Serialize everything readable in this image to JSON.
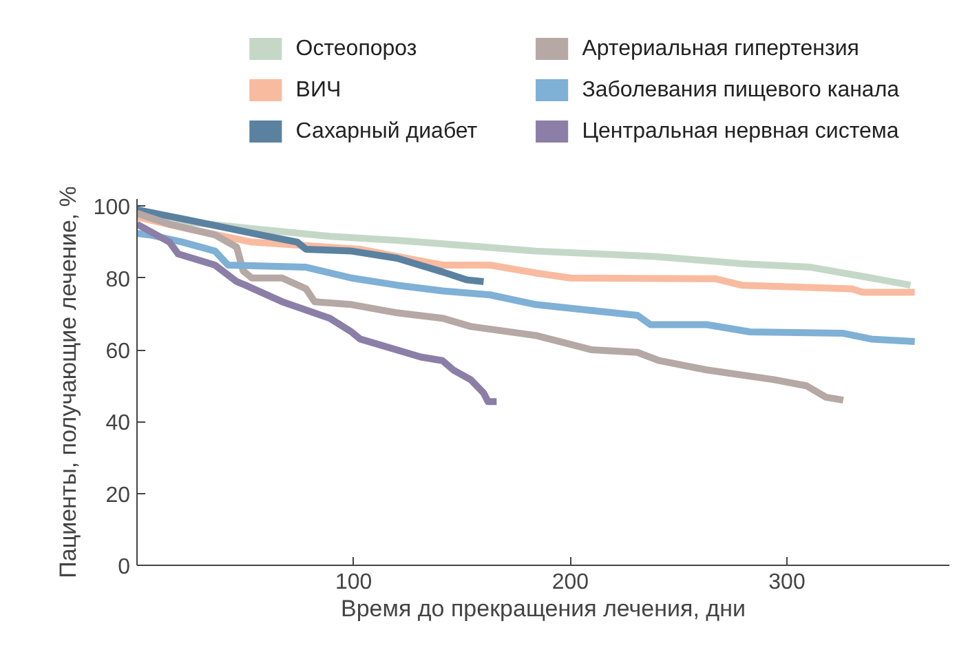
{
  "chart_data": {
    "type": "line",
    "xlabel": "Время до прекращения лечения, дни",
    "ylabel": "Пациенты, получающие лечение, %",
    "xlim": [
      0,
      375
    ],
    "ylim": [
      0,
      102
    ],
    "xticks": [
      100,
      200,
      300
    ],
    "yticks": [
      0,
      20,
      40,
      60,
      80,
      100
    ],
    "grid": false,
    "legend": "top",
    "marker": "none",
    "line_style": "solid",
    "series": [
      {
        "name": "Остеопороз",
        "color": "#c5d8c8",
        "x": [
          0,
          25,
          57,
          89,
          120,
          152,
          184,
          239,
          279,
          311,
          339,
          357
        ],
        "values": [
          99,
          95.5,
          93.5,
          91.6,
          90.5,
          89,
          87.5,
          86,
          84,
          83,
          80,
          78
        ]
      },
      {
        "name": "ВИЧ",
        "color": "#f9bba0",
        "x": [
          0,
          25,
          53,
          78,
          103,
          120,
          141,
          163,
          184,
          200,
          267,
          279,
          330,
          335,
          359
        ],
        "values": [
          97,
          93.5,
          90,
          89,
          88,
          86,
          83.6,
          83.6,
          81.4,
          80,
          79.8,
          78,
          77,
          76,
          76
        ]
      },
      {
        "name": "Сахарный диабет",
        "color": "#5a82a0",
        "x": [
          0,
          25,
          57,
          74,
          78,
          99,
          120,
          141,
          152,
          160
        ],
        "values": [
          99,
          96,
          92,
          90,
          88,
          87.5,
          85.5,
          81.7,
          79.5,
          79
        ]
      },
      {
        "name": "Артериальная гипертензия",
        "color": "#b5a8a5",
        "x": [
          0,
          15,
          36,
          46,
          49,
          53,
          67,
          78,
          82,
          99,
          120,
          141,
          154,
          184,
          210,
          231,
          241,
          263,
          294,
          309,
          318,
          326
        ],
        "values": [
          98,
          95,
          92,
          88.6,
          82,
          80,
          80,
          77,
          73.4,
          72.6,
          70.3,
          68.8,
          66.5,
          64,
          60,
          59.3,
          57,
          54.4,
          51.7,
          50,
          46.8,
          46
        ]
      },
      {
        "name": "Заболевания пищевого канала",
        "color": "#7fb0d6",
        "x": [
          0,
          6,
          21,
          36,
          42,
          78,
          99,
          120,
          141,
          163,
          184,
          231,
          237,
          263,
          283,
          326,
          339,
          359
        ],
        "values": [
          92.4,
          92,
          90,
          87.5,
          83.6,
          83,
          80,
          78,
          76.4,
          75.3,
          72.6,
          69.6,
          67,
          67,
          65,
          64.6,
          63,
          62.3
        ]
      },
      {
        "name": "Центральная нервная система",
        "color": "#8b7fa8",
        "x": [
          0,
          15,
          19,
          36,
          46,
          50,
          67,
          89,
          99,
          103,
          131,
          141,
          146,
          154,
          160,
          162,
          166
        ],
        "values": [
          95,
          90,
          86.7,
          83.6,
          79,
          78,
          73.4,
          68.8,
          65,
          63,
          58,
          57,
          54.4,
          51.7,
          48,
          45.6,
          45.6
        ]
      }
    ]
  }
}
